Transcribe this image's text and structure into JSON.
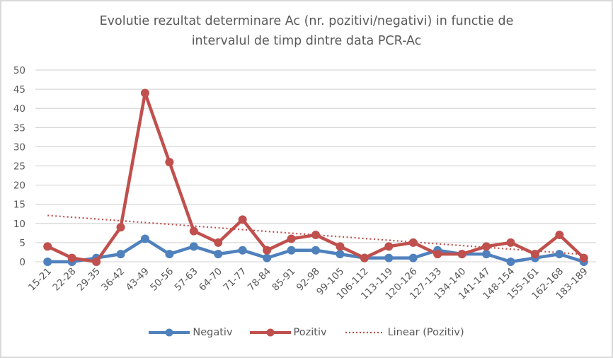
{
  "chart_data": {
    "type": "line",
    "title": "Evolutie rezultat determinare Ac (nr. pozitivi/negativi) in functie de intervalul de timp dintre data PCR-Ac",
    "title_lines": [
      "Evolutie rezultat determinare Ac (nr. pozitivi/negativi) in functie de",
      "intervalul de timp dintre data PCR-Ac"
    ],
    "xlabel": "",
    "ylabel": "",
    "ylim": [
      0,
      50
    ],
    "yticks": [
      "0",
      "5",
      "10",
      "15",
      "20",
      "25",
      "30",
      "35",
      "40",
      "45",
      "50"
    ],
    "grid": true,
    "legend_position": "bottom",
    "categories": [
      "15-21",
      "22-28",
      "29-35",
      "36-42",
      "43-49",
      "50-56",
      "57-63",
      "64-70",
      "71-77",
      "78-84",
      "85-91",
      "92-98",
      "99-105",
      "106-112",
      "113-119",
      "120-126",
      "127-133",
      "134-140",
      "141-147",
      "148-154",
      "155-161",
      "162-168",
      "183-189"
    ],
    "series": [
      {
        "name": "Negativ",
        "color": "#4f81bd",
        "values": [
          0,
          0,
          1,
          2,
          6,
          2,
          4,
          2,
          3,
          1,
          3,
          3,
          2,
          1,
          1,
          1,
          3,
          2,
          2,
          0,
          1,
          2,
          0
        ]
      },
      {
        "name": "Pozitiv",
        "color": "#c0504d",
        "values": [
          4,
          1,
          0,
          9,
          44,
          26,
          8,
          5,
          11,
          3,
          6,
          7,
          4,
          1,
          4,
          5,
          2,
          2,
          4,
          5,
          2,
          7,
          1
        ]
      }
    ],
    "trendline": {
      "name": "Linear (Pozitiv)",
      "type": "linear",
      "of": "Pozitiv",
      "color": "#c0504d"
    }
  }
}
